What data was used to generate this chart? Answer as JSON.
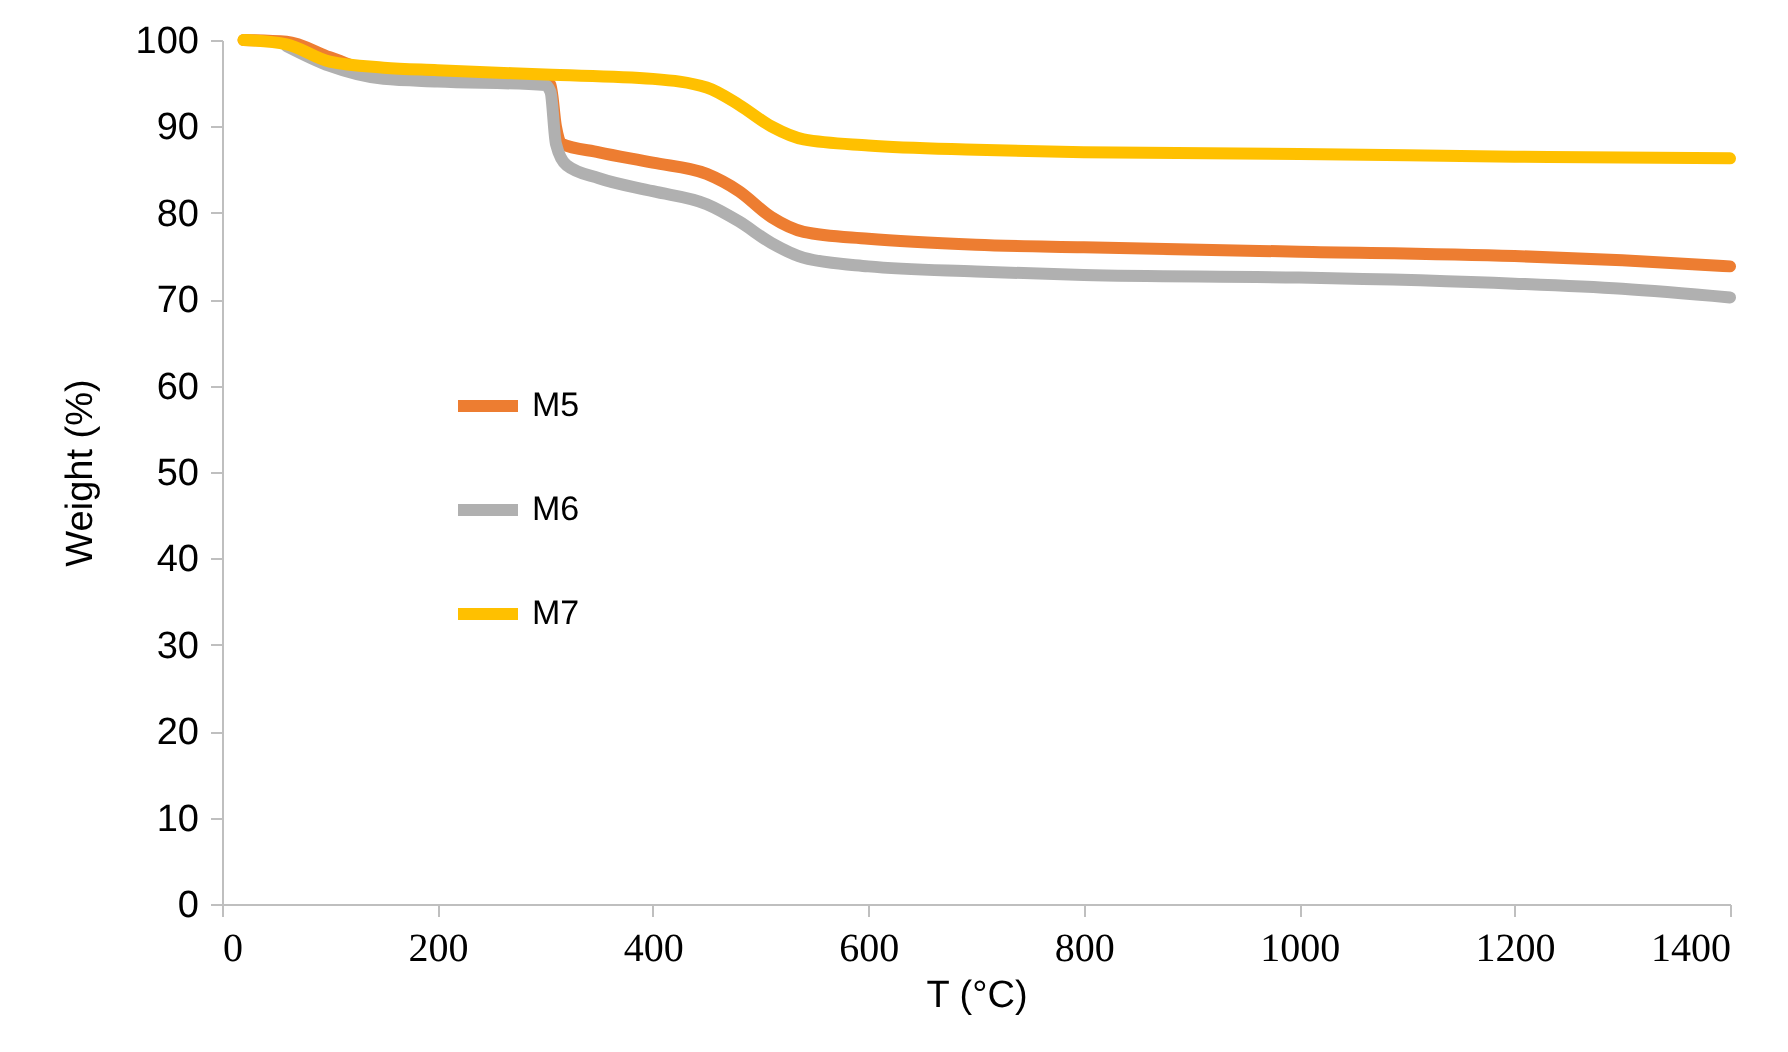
{
  "chart_data": {
    "type": "line",
    "xlabel": "T (°C)",
    "ylabel": "Weight (%)",
    "xlim": [
      0,
      1400
    ],
    "xticks": [
      0,
      200,
      400,
      600,
      800,
      1000,
      1200,
      1400
    ],
    "ylim": [
      0,
      100
    ],
    "yticks": [
      0,
      10,
      20,
      30,
      40,
      50,
      60,
      70,
      80,
      90,
      100
    ],
    "grid": false,
    "legend": "left",
    "marker": "none",
    "line_style": "solid",
    "series": [
      {
        "name": "M5",
        "color": "#ed7d31",
        "x": [
          20,
          60,
          100,
          150,
          200,
          300,
          305,
          310,
          315,
          350,
          400,
          450,
          480,
          510,
          540,
          600,
          700,
          800,
          1000,
          1200,
          1300,
          1400
        ],
        "values": [
          100,
          99.8,
          98,
          96,
          95.5,
          95.2,
          94.8,
          90,
          88,
          87,
          85.8,
          84.5,
          82.5,
          79.5,
          77.8,
          77,
          76.3,
          76,
          75.5,
          75,
          74.5,
          73.8
        ]
      },
      {
        "name": "M6",
        "color": "#b0b0b0",
        "x": [
          60,
          100,
          150,
          200,
          300,
          305,
          310,
          320,
          350,
          400,
          450,
          480,
          510,
          540,
          600,
          700,
          800,
          1000,
          1200,
          1300,
          1400
        ],
        "values": [
          99.3,
          97,
          95.5,
          95.2,
          94.8,
          94,
          88,
          85.5,
          84,
          82.5,
          81,
          79,
          76.5,
          74.8,
          73.8,
          73.2,
          72.8,
          72.5,
          71.8,
          71.2,
          70.2
        ]
      },
      {
        "name": "M7",
        "color": "#ffc000",
        "x": [
          20,
          60,
          100,
          150,
          200,
          300,
          400,
          450,
          480,
          510,
          540,
          600,
          700,
          800,
          1000,
          1200,
          1400
        ],
        "values": [
          100,
          99.5,
          97.5,
          96.8,
          96.5,
          96,
          95.5,
          94.5,
          92.5,
          90,
          88.5,
          87.8,
          87.3,
          87,
          86.8,
          86.5,
          86.3
        ]
      }
    ]
  }
}
